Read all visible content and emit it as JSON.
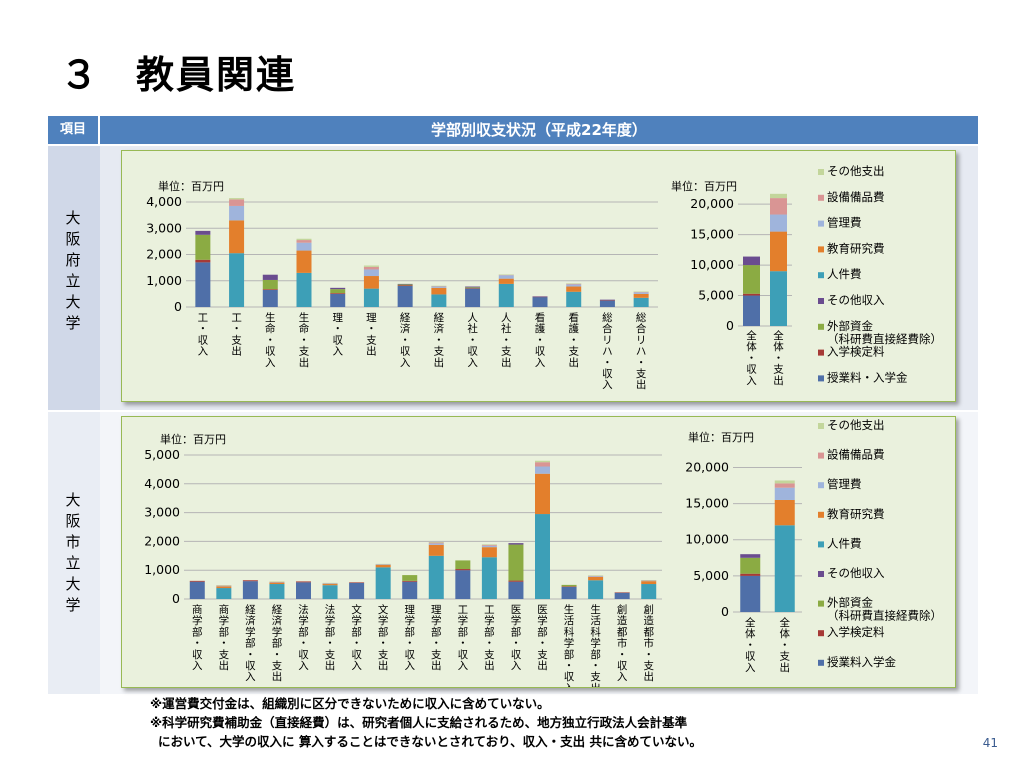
{
  "slide": {
    "number": "３",
    "title": "教員関連",
    "page": "41"
  },
  "table": {
    "header_left": "項目",
    "header_right": "学部別収支状況（平成22年度）",
    "rows": [
      {
        "label": [
          "大",
          "阪",
          "府",
          "立",
          "大",
          "学"
        ]
      },
      {
        "label": [
          "大",
          "阪",
          "市",
          "立",
          "大",
          "学"
        ]
      }
    ]
  },
  "notes": [
    "※運営費交付金は、組織別に区分できないために収入に含めていない。",
    "※科学研究費補助金（直接経費）は、研究者個人に支給されるため、地方独立行政法人会計基準",
    "において、大学の収入に 算入することはできないとされており、収入・支出 共に含めていない。"
  ],
  "colors": {
    "授業料・入学金": "#4f6fa8",
    "入学検定料": "#a63a36",
    "外部資金": "#8bab43",
    "その他収入": "#6a4c8f",
    "人件費": "#3d9fb7",
    "教育研究費": "#e37f2c",
    "管理費": "#9fb4dc",
    "設備備品費": "#d99594",
    "その他支出": "#c3d69b"
  },
  "chart_data": [
    {
      "type": "bar",
      "stacked": true,
      "unit_label": "単位：百万円",
      "ylim": [
        0,
        4000
      ],
      "yticks": [
        "0",
        "1,000",
        "2,000",
        "3,000",
        "4,000"
      ],
      "categories": [
        "工・収入",
        "工・支出",
        "生命・収入",
        "生命・支出",
        "理・収入",
        "理・支出",
        "経済・収入",
        "経済・支出",
        "人社・収入",
        "人社・支出",
        "看護・収入",
        "看護・支出",
        "総合リハ・収入",
        "総合リハ・支出"
      ],
      "series": [
        {
          "name": "授業料・入学金",
          "values": [
            1700,
            0,
            650,
            0,
            500,
            0,
            800,
            0,
            700,
            0,
            380,
            0,
            250,
            0
          ]
        },
        {
          "name": "入学検定料",
          "values": [
            100,
            0,
            30,
            0,
            30,
            0,
            30,
            0,
            20,
            0,
            15,
            0,
            10,
            0
          ]
        },
        {
          "name": "外部資金",
          "values": [
            950,
            0,
            350,
            0,
            150,
            0,
            30,
            0,
            30,
            0,
            0,
            0,
            0,
            0
          ]
        },
        {
          "name": "その他収入",
          "values": [
            150,
            0,
            200,
            0,
            50,
            0,
            20,
            0,
            30,
            0,
            10,
            0,
            20,
            0
          ]
        },
        {
          "name": "人件費",
          "values": [
            0,
            2050,
            0,
            1300,
            0,
            700,
            0,
            480,
            0,
            880,
            0,
            580,
            0,
            350
          ]
        },
        {
          "name": "教育研究費",
          "values": [
            0,
            1250,
            0,
            850,
            0,
            480,
            0,
            250,
            0,
            200,
            0,
            200,
            0,
            150
          ]
        },
        {
          "name": "管理費",
          "values": [
            0,
            550,
            0,
            300,
            0,
            250,
            0,
            50,
            0,
            130,
            0,
            80,
            0,
            60
          ]
        },
        {
          "name": "設備備品費",
          "values": [
            0,
            250,
            0,
            100,
            0,
            100,
            0,
            20,
            0,
            20,
            0,
            30,
            0,
            20
          ]
        },
        {
          "name": "その他支出",
          "values": [
            0,
            50,
            0,
            50,
            0,
            50,
            0,
            10,
            0,
            10,
            0,
            10,
            0,
            10
          ]
        }
      ]
    },
    {
      "type": "bar",
      "stacked": true,
      "unit_label": "単位：百万円",
      "ylim": [
        0,
        22000
      ],
      "yticks": [
        "0",
        "5,000",
        "10,000",
        "15,000",
        "20,000"
      ],
      "categories": [
        "全体・収入",
        "全体・支出"
      ],
      "series": [
        {
          "name": "授業料・入学金",
          "values": [
            5000,
            0
          ]
        },
        {
          "name": "入学検定料",
          "values": [
            300,
            0
          ]
        },
        {
          "name": "外部資金",
          "values": [
            4700,
            0
          ]
        },
        {
          "name": "その他収入",
          "values": [
            1400,
            0
          ]
        },
        {
          "name": "人件費",
          "values": [
            0,
            9000
          ]
        },
        {
          "name": "教育研究費",
          "values": [
            0,
            6500
          ]
        },
        {
          "name": "管理費",
          "values": [
            0,
            2800
          ]
        },
        {
          "name": "設備備品費",
          "values": [
            0,
            2700
          ]
        },
        {
          "name": "その他支出",
          "values": [
            0,
            700
          ]
        }
      ],
      "legend": [
        "その他支出",
        "設備備品費",
        "管理費",
        "教育研究費",
        "人件費",
        "その他収入",
        "外部資金\n（科研費直接経費除）",
        "入学検定料",
        "授業料・入学金"
      ]
    },
    {
      "type": "bar",
      "stacked": true,
      "unit_label": "単位：百万円",
      "ylim": [
        0,
        5000
      ],
      "yticks": [
        "0",
        "1,000",
        "2,000",
        "3,000",
        "4,000",
        "5,000"
      ],
      "categories": [
        "商学部・収入",
        "商学部・支出",
        "経済学部・収入",
        "経済学部・支出",
        "法学部・収入",
        "法学部・支出",
        "文学部・収入",
        "文学部・支出",
        "理学部・収入",
        "理学部・支出",
        "工学部・収入",
        "工学部・支出",
        "医学部・収入",
        "医学部・支出",
        "生活科学部・収入",
        "生活科学部・支出",
        "創造都市・収入",
        "創造都市・支出"
      ],
      "series": [
        {
          "name": "授業料入学金",
          "values": [
            600,
            0,
            620,
            0,
            580,
            0,
            560,
            0,
            600,
            0,
            1000,
            0,
            600,
            0,
            420,
            0,
            220,
            0
          ]
        },
        {
          "name": "入学検定料",
          "values": [
            30,
            0,
            30,
            0,
            30,
            0,
            20,
            0,
            30,
            0,
            40,
            0,
            40,
            0,
            20,
            0,
            10,
            0
          ]
        },
        {
          "name": "外部資金",
          "values": [
            0,
            0,
            0,
            0,
            0,
            0,
            0,
            0,
            200,
            0,
            300,
            0,
            1250,
            0,
            50,
            0,
            0,
            0
          ]
        },
        {
          "name": "その他収入",
          "values": [
            0,
            0,
            0,
            0,
            0,
            0,
            0,
            0,
            0,
            0,
            0,
            0,
            50,
            0,
            0,
            0,
            0,
            0
          ]
        },
        {
          "name": "人件費",
          "values": [
            0,
            380,
            0,
            520,
            0,
            480,
            0,
            1100,
            0,
            1500,
            0,
            1450,
            0,
            2950,
            0,
            650,
            0,
            520
          ]
        },
        {
          "name": "教育研究費",
          "values": [
            0,
            60,
            0,
            50,
            0,
            40,
            0,
            80,
            0,
            380,
            0,
            350,
            0,
            1400,
            0,
            120,
            0,
            100
          ]
        },
        {
          "name": "管理費",
          "values": [
            0,
            20,
            0,
            20,
            0,
            20,
            0,
            20,
            0,
            50,
            0,
            50,
            0,
            250,
            0,
            30,
            0,
            20
          ]
        },
        {
          "name": "設備備品費",
          "values": [
            0,
            10,
            0,
            10,
            0,
            10,
            0,
            10,
            0,
            30,
            0,
            30,
            0,
            150,
            0,
            10,
            0,
            10
          ]
        },
        {
          "name": "その他支出",
          "values": [
            0,
            10,
            0,
            10,
            0,
            10,
            0,
            10,
            0,
            20,
            0,
            20,
            0,
            50,
            0,
            10,
            0,
            10
          ]
        }
      ]
    },
    {
      "type": "bar",
      "stacked": true,
      "unit_label": "単位：百万円",
      "ylim": [
        0,
        22000
      ],
      "yticks": [
        "0",
        "5,000",
        "10,000",
        "15,000",
        "20,000"
      ],
      "categories": [
        "全体・収入",
        "全体・支出"
      ],
      "series": [
        {
          "name": "授業料入学金",
          "values": [
            5000,
            0
          ]
        },
        {
          "name": "入学検定料",
          "values": [
            300,
            0
          ]
        },
        {
          "name": "外部資金",
          "values": [
            2200,
            0
          ]
        },
        {
          "name": "その他収入",
          "values": [
            500,
            0
          ]
        },
        {
          "name": "人件費",
          "values": [
            0,
            12000
          ]
        },
        {
          "name": "教育研究費",
          "values": [
            0,
            3500
          ]
        },
        {
          "name": "管理費",
          "values": [
            0,
            1700
          ]
        },
        {
          "name": "設備備品費",
          "values": [
            0,
            600
          ]
        },
        {
          "name": "その他支出",
          "values": [
            0,
            400
          ]
        }
      ],
      "legend": [
        "その他支出",
        "設備備品費",
        "管理費",
        "教育研究費",
        "人件費",
        "その他収入",
        "外部資金\n（科研費直接経費除）",
        "入学検定料",
        "授業料入学金"
      ]
    }
  ]
}
